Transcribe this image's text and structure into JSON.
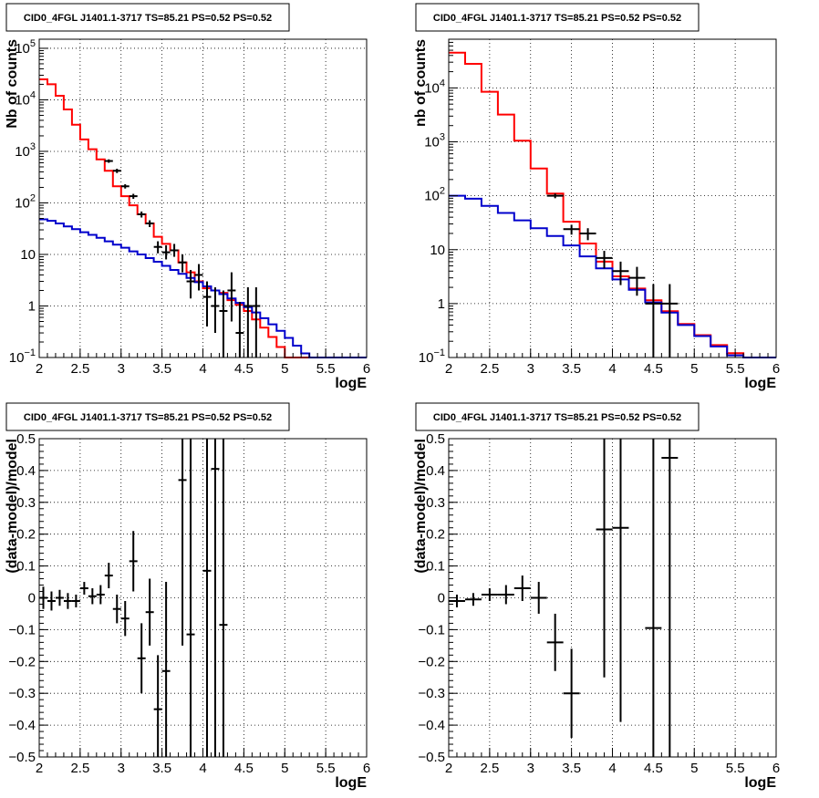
{
  "chart_data": [
    {
      "type": "line",
      "title": "CID0_4FGL J1401.1-3717 TS=85.21 PS=0.52 PS=0.52",
      "xlabel": "logE",
      "ylabel": "Nb of counts",
      "xlim": [
        2,
        6
      ],
      "ylim": [
        0.1,
        150000
      ],
      "yscale": "log",
      "xticks": [
        "2",
        "2.5",
        "3",
        "3.5",
        "4",
        "4.5",
        "5",
        "5.5",
        "6"
      ],
      "yticks": [
        {
          "v": 0.1,
          "base": "10",
          "exp": "−1"
        },
        {
          "v": 1,
          "label": "1"
        },
        {
          "v": 10,
          "label": "10"
        },
        {
          "v": 100,
          "base": "10",
          "exp": "2"
        },
        {
          "v": 1000,
          "base": "10",
          "exp": "3"
        },
        {
          "v": 10000,
          "base": "10",
          "exp": "4"
        },
        {
          "v": 100000,
          "base": "10",
          "exp": "5"
        }
      ],
      "grid": true,
      "series": [
        {
          "color": "#ff0000",
          "kind": "step",
          "edges": [
            2,
            2.1,
            2.2,
            2.3,
            2.4,
            2.5,
            2.6,
            2.7,
            2.8,
            2.9,
            3,
            3.1,
            3.2,
            3.3,
            3.4,
            3.5,
            3.6,
            3.7,
            3.8,
            3.9,
            4,
            4.1,
            4.2,
            4.3,
            4.4,
            4.5,
            4.6,
            4.7,
            4.8,
            4.9,
            5,
            5.1,
            5.2,
            5.3,
            5.4,
            5.5,
            5.6,
            5.7,
            5.8,
            5.9,
            6
          ],
          "values": [
            25000,
            20000,
            12000,
            6500,
            3300,
            1700,
            1100,
            700,
            420,
            210,
            135,
            90,
            60,
            40,
            22,
            16,
            12,
            7,
            4.5,
            3,
            2.2,
            2,
            1.8,
            1.3,
            1.05,
            0.8,
            0.55,
            0.38,
            0.25,
            0.16,
            0.1,
            0.1,
            0.1,
            0.1,
            0.1,
            0.1,
            0.1,
            0.1,
            0.1,
            0.1
          ]
        },
        {
          "color": "#0000cc",
          "kind": "step",
          "edges": [
            2,
            2.1,
            2.2,
            2.3,
            2.4,
            2.5,
            2.6,
            2.7,
            2.8,
            2.9,
            3,
            3.1,
            3.2,
            3.3,
            3.4,
            3.5,
            3.6,
            3.7,
            3.8,
            3.9,
            4,
            4.1,
            4.2,
            4.3,
            4.4,
            4.5,
            4.6,
            4.7,
            4.8,
            4.9,
            5,
            5.1,
            5.2,
            5.3,
            5.4,
            5.5,
            5.6,
            5.7,
            5.8,
            5.9,
            6
          ],
          "values": [
            48,
            45,
            40,
            35,
            31,
            27,
            24,
            21,
            18,
            15.5,
            13.5,
            11.5,
            10,
            8.5,
            7.2,
            6,
            5,
            4.2,
            3.5,
            2.9,
            2.4,
            2,
            1.7,
            1.4,
            1.15,
            0.95,
            0.75,
            0.58,
            0.44,
            0.33,
            0.24,
            0.17,
            0.12,
            0.1,
            0.1,
            0.1,
            0.1,
            0.1,
            0.1,
            0.1
          ]
        },
        {
          "color": "#000000",
          "kind": "points",
          "xerr": 0.05,
          "x": [
            2.85,
            2.95,
            3.05,
            3.15,
            3.25,
            3.35,
            3.45,
            3.55,
            3.65,
            3.75,
            3.85,
            3.95,
            4.05,
            4.15,
            4.25,
            4.35,
            4.45,
            4.55,
            4.65
          ],
          "y": [
            650,
            420,
            210,
            135,
            60,
            40,
            14,
            11,
            12,
            7,
            3,
            4,
            1.5,
            1,
            0.8,
            2,
            0.3,
            1,
            1
          ],
          "ylo": [
            600,
            380,
            190,
            120,
            52,
            34,
            10.5,
            8,
            9,
            4.5,
            1.4,
            2,
            0.4,
            0.3,
            0.1,
            0.5,
            0.1,
            0.1,
            0.1
          ],
          "yhi": [
            700,
            460,
            230,
            150,
            68,
            46,
            18,
            15,
            16,
            10,
            5,
            6.5,
            3,
            2.3,
            2,
            4.5,
            1.2,
            2.3,
            2.3
          ]
        }
      ]
    },
    {
      "type": "line",
      "title": "CID0_4FGL J1401.1-3717 TS=85.21 PS=0.52 PS=0.52",
      "xlabel": "logE",
      "ylabel": "nb of counts",
      "xlim": [
        2,
        6
      ],
      "ylim": [
        0.1,
        80000
      ],
      "yscale": "log",
      "xticks": [
        "2",
        "2.5",
        "3",
        "3.5",
        "4",
        "4.5",
        "5",
        "5.5",
        "6"
      ],
      "yticks": [
        {
          "v": 0.1,
          "base": "10",
          "exp": "−1"
        },
        {
          "v": 1,
          "label": "1"
        },
        {
          "v": 10,
          "label": "10"
        },
        {
          "v": 100,
          "base": "10",
          "exp": "2"
        },
        {
          "v": 1000,
          "base": "10",
          "exp": "3"
        },
        {
          "v": 10000,
          "base": "10",
          "exp": "4"
        }
      ],
      "grid": true,
      "series": [
        {
          "color": "#ff0000",
          "kind": "step",
          "edges": [
            2,
            2.2,
            2.4,
            2.6,
            2.8,
            3,
            3.2,
            3.4,
            3.6,
            3.8,
            4,
            4.2,
            4.4,
            4.6,
            4.8,
            5,
            5.2,
            5.4,
            5.6,
            5.8,
            6
          ],
          "values": [
            45000,
            28000,
            8500,
            3200,
            1050,
            320,
            110,
            33,
            13,
            6,
            3.2,
            1.9,
            1.15,
            0.72,
            0.42,
            0.26,
            0.17,
            0.12,
            0.1,
            0.1
          ]
        },
        {
          "color": "#0000cc",
          "kind": "step",
          "edges": [
            2,
            2.2,
            2.4,
            2.6,
            2.8,
            3,
            3.2,
            3.4,
            3.6,
            3.8,
            4,
            4.2,
            4.4,
            4.6,
            4.8,
            5,
            5.2,
            5.4,
            5.6,
            5.8,
            6
          ],
          "values": [
            100,
            88,
            65,
            48,
            35,
            25,
            18,
            12,
            7.5,
            4.5,
            2.8,
            1.8,
            1.05,
            0.68,
            0.4,
            0.25,
            0.16,
            0.11,
            0.1,
            0.1
          ]
        },
        {
          "color": "#000000",
          "kind": "points",
          "xerr": 0.1,
          "x": [
            3.3,
            3.5,
            3.7,
            3.9,
            4.1,
            4.3,
            4.5,
            4.7
          ],
          "y": [
            100,
            24,
            20,
            7,
            4,
            3,
            1,
            1
          ],
          "ylo": [
            90,
            19,
            15,
            4.5,
            2.2,
            1.4,
            0.1,
            0.1
          ],
          "yhi": [
            110,
            29,
            25,
            9.5,
            6,
            4.8,
            2.3,
            2.3
          ]
        }
      ]
    },
    {
      "type": "scatter",
      "title": "CID0_4FGL J1401.1-3717 TS=85.21 PS=0.52 PS=0.52",
      "xlabel": "logE",
      "ylabel": "(data-model)/model",
      "xlim": [
        2,
        6
      ],
      "ylim": [
        -0.5,
        0.5
      ],
      "yscale": "linear",
      "xticks": [
        "2",
        "2.5",
        "3",
        "3.5",
        "4",
        "4.5",
        "5",
        "5.5",
        "6"
      ],
      "yticks": [
        {
          "v": -0.5,
          "label": "−0.5"
        },
        {
          "v": -0.4,
          "label": "−0.4"
        },
        {
          "v": -0.3,
          "label": "−0.3"
        },
        {
          "v": -0.2,
          "label": "−0.2"
        },
        {
          "v": -0.1,
          "label": "−0.1"
        },
        {
          "v": 0,
          "label": "0"
        },
        {
          "v": 0.1,
          "label": "0.1"
        },
        {
          "v": 0.2,
          "label": "0.2"
        },
        {
          "v": 0.3,
          "label": "0.3"
        },
        {
          "v": 0.4,
          "label": "0.4"
        },
        {
          "v": 0.5,
          "label": "0.5"
        }
      ],
      "grid": true,
      "series": [
        {
          "color": "#000000",
          "kind": "points",
          "xerr": 0.05,
          "x": [
            2.05,
            2.15,
            2.25,
            2.35,
            2.45,
            2.55,
            2.65,
            2.75,
            2.85,
            2.95,
            3.05,
            3.15,
            3.25,
            3.35,
            3.45,
            3.55,
            3.75,
            3.85,
            4.05,
            4.15,
            4.25
          ],
          "y": [
            0,
            -0.01,
            0,
            -0.01,
            -0.01,
            0.03,
            0.005,
            0.01,
            0.07,
            -0.035,
            -0.065,
            0.115,
            -0.19,
            -0.045,
            -0.35,
            -0.23,
            0.37,
            -0.115,
            0.085,
            0.405,
            -0.085
          ],
          "ylo": [
            -0.035,
            -0.04,
            -0.025,
            -0.035,
            -0.03,
            0.01,
            -0.02,
            -0.02,
            0.03,
            -0.08,
            -0.12,
            0.02,
            -0.3,
            -0.15,
            -0.5,
            -0.5,
            -0.15,
            -0.5,
            -0.5,
            -0.5,
            -0.5
          ],
          "yhi": [
            0.035,
            0.02,
            0.025,
            0.015,
            0.01,
            0.05,
            0.03,
            0.04,
            0.11,
            0.01,
            -0.01,
            0.21,
            -0.08,
            0.06,
            -0.18,
            0.05,
            0.5,
            0.5,
            0.5,
            0.5,
            0.5
          ]
        }
      ]
    },
    {
      "type": "scatter",
      "title": "CID0_4FGL J1401.1-3717 TS=85.21 PS=0.52 PS=0.52",
      "xlabel": "logE",
      "ylabel": "(data-model)/model",
      "xlim": [
        2,
        6
      ],
      "ylim": [
        -0.5,
        0.5
      ],
      "yscale": "linear",
      "xticks": [
        "2",
        "2.5",
        "3",
        "3.5",
        "4",
        "4.5",
        "5",
        "5.5",
        "6"
      ],
      "yticks": [
        {
          "v": -0.5,
          "label": "−0.5"
        },
        {
          "v": -0.4,
          "label": "−0.4"
        },
        {
          "v": -0.3,
          "label": "−0.3"
        },
        {
          "v": -0.2,
          "label": "−0.2"
        },
        {
          "v": -0.1,
          "label": "−0.1"
        },
        {
          "v": 0,
          "label": "0"
        },
        {
          "v": 0.1,
          "label": "0.1"
        },
        {
          "v": 0.2,
          "label": "0.2"
        },
        {
          "v": 0.3,
          "label": "0.3"
        },
        {
          "v": 0.4,
          "label": "0.4"
        },
        {
          "v": 0.5,
          "label": "0.5"
        }
      ],
      "grid": true,
      "series": [
        {
          "color": "#000000",
          "kind": "points",
          "xerr": 0.1,
          "x": [
            2.1,
            2.3,
            2.5,
            2.7,
            2.9,
            3.1,
            3.3,
            3.5,
            3.9,
            4.1,
            4.5,
            4.7
          ],
          "y": [
            -0.01,
            -0.005,
            0.01,
            0.01,
            0.03,
            0,
            -0.14,
            -0.3,
            0.215,
            0.22,
            -0.095,
            0.44
          ],
          "ylo": [
            -0.03,
            -0.025,
            -0.01,
            -0.02,
            -0.01,
            -0.05,
            -0.23,
            -0.44,
            -0.25,
            -0.39,
            -0.5,
            -0.5
          ],
          "yhi": [
            0.01,
            0.015,
            0.03,
            0.04,
            0.07,
            0.05,
            -0.05,
            -0.16,
            0.5,
            0.5,
            0.5,
            0.5
          ]
        }
      ]
    }
  ]
}
